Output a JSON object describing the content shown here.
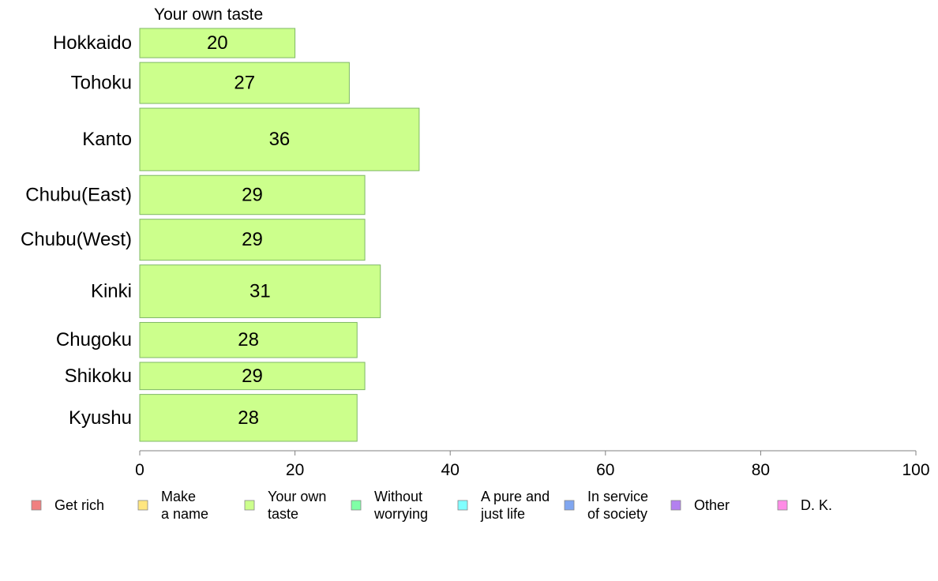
{
  "chart_data": {
    "type": "bar",
    "orientation": "horizontal",
    "title": "Your own taste",
    "categories": [
      "Hokkaido",
      "Tohoku",
      "Kanto",
      "Chubu(East)",
      "Chubu(West)",
      "Kinki",
      "Chugoku",
      "Shikoku",
      "Kyushu"
    ],
    "values": [
      20,
      27,
      36,
      29,
      29,
      31,
      28,
      29,
      28
    ],
    "relative_widths": [
      0.75,
      1.05,
      1.6,
      1.0,
      1.05,
      1.35,
      0.9,
      0.7,
      1.2
    ],
    "data_labels": [
      "20",
      "27",
      "36",
      "29",
      "29",
      "31",
      "28",
      "29",
      "28"
    ],
    "xlim": [
      0,
      100
    ],
    "x_ticks": [
      "0",
      "20",
      "40",
      "60",
      "80",
      "100"
    ],
    "bar_color": "#ccff8c",
    "grid": false,
    "legend_position": "bottom",
    "legend": [
      {
        "lines": [
          "Get rich"
        ],
        "color": "#f08080"
      },
      {
        "lines": [
          "Make",
          "a name"
        ],
        "color": "#ffe680"
      },
      {
        "lines": [
          "Your own",
          "taste"
        ],
        "color": "#ccff8c"
      },
      {
        "lines": [
          "Without",
          "worrying"
        ],
        "color": "#80ffa6"
      },
      {
        "lines": [
          "A pure and",
          "just life"
        ],
        "color": "#80ffff"
      },
      {
        "lines": [
          "In service",
          "of society"
        ],
        "color": "#80a6f0"
      },
      {
        "lines": [
          "Other"
        ],
        "color": "#b380f0"
      },
      {
        "lines": [
          "D. K."
        ],
        "color": "#ff8ce6"
      }
    ]
  }
}
